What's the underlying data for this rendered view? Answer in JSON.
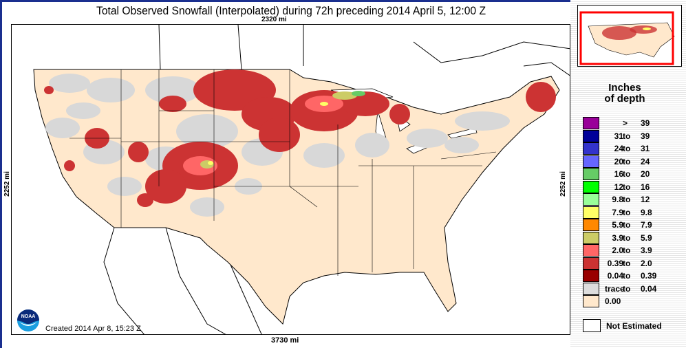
{
  "title": "Total Observed Snowfall (Interpolated) during 72h preceding 2014 April 5, 12:00 Z",
  "scale": {
    "top": "2320 mi",
    "bottom": "3730 mi",
    "left": "2252 mi",
    "right": "2252 mi"
  },
  "created": "Created 2014 Apr 8, 15:23 Z",
  "logo": "NOAA",
  "legend": {
    "title_line1": "Inches",
    "title_line2": "of depth",
    "items": [
      {
        "lo": "",
        "to": ">",
        "hi": "39",
        "color": "#990099"
      },
      {
        "lo": "31",
        "to": "to",
        "hi": "39",
        "color": "#000099"
      },
      {
        "lo": "24",
        "to": "to",
        "hi": "31",
        "color": "#3333cc"
      },
      {
        "lo": "20",
        "to": "to",
        "hi": "24",
        "color": "#6666ff"
      },
      {
        "lo": "16",
        "to": "to",
        "hi": "20",
        "color": "#66cc66"
      },
      {
        "lo": "12",
        "to": "to",
        "hi": "16",
        "color": "#00ff00"
      },
      {
        "lo": "9.8",
        "to": "to",
        "hi": "12",
        "color": "#99ff99"
      },
      {
        "lo": "7.9",
        "to": "to",
        "hi": "9.8",
        "color": "#ffff66"
      },
      {
        "lo": "5.9",
        "to": "to",
        "hi": "7.9",
        "color": "#ff8800"
      },
      {
        "lo": "3.9",
        "to": "to",
        "hi": "5.9",
        "color": "#cccc66"
      },
      {
        "lo": "2.0",
        "to": "to",
        "hi": "3.9",
        "color": "#ff6666"
      },
      {
        "lo": "0.39",
        "to": "to",
        "hi": "2.0",
        "color": "#cc3333"
      },
      {
        "lo": "0.04",
        "to": "to",
        "hi": "0.39",
        "color": "#990000"
      },
      {
        "lo": "trace",
        "to": "to",
        "hi": "0.04",
        "color": "#dddddd"
      },
      {
        "lo": "0.00",
        "to": "",
        "hi": "",
        "color": "#ffe8cc"
      }
    ],
    "not_estimated": "Not Estimated"
  }
}
